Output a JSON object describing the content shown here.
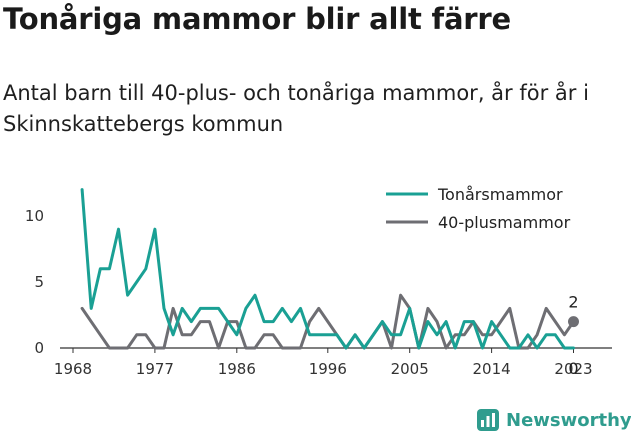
{
  "title": "Tonåriga mammor blir allt färre",
  "subtitle": "Antal barn till 40-plus- och tonåriga mammor, år för år i Skinnskattebergs kommun",
  "brand": {
    "name": "Newsworthy",
    "icon": "newsworthy-logo-icon",
    "color": "#2f9c8e"
  },
  "chart_data": {
    "type": "line",
    "x": [
      1969,
      1970,
      1971,
      1972,
      1973,
      1974,
      1975,
      1976,
      1977,
      1978,
      1979,
      1980,
      1981,
      1982,
      1983,
      1984,
      1985,
      1986,
      1987,
      1988,
      1989,
      1990,
      1991,
      1992,
      1993,
      1994,
      1995,
      1996,
      1997,
      1998,
      1999,
      2000,
      2001,
      2002,
      2003,
      2004,
      2005,
      2006,
      2007,
      2008,
      2009,
      2010,
      2011,
      2012,
      2013,
      2014,
      2015,
      2016,
      2017,
      2018,
      2019,
      2020,
      2021,
      2022,
      2023
    ],
    "series": [
      {
        "name": "Tonårsmammor",
        "color": "#1aa094",
        "values": [
          12,
          3,
          6,
          6,
          9,
          4,
          5,
          6,
          9,
          3,
          1,
          3,
          2,
          3,
          3,
          3,
          2,
          1,
          3,
          4,
          2,
          2,
          3,
          2,
          3,
          1,
          1,
          1,
          1,
          0,
          1,
          0,
          1,
          2,
          1,
          1,
          3,
          0,
          2,
          1,
          2,
          0,
          2,
          2,
          0,
          2,
          1,
          0,
          0,
          1,
          0,
          1,
          1,
          0,
          0
        ]
      },
      {
        "name": "40-plusmammor",
        "color": "#6e6e73",
        "values": [
          3,
          2,
          1,
          0,
          0,
          0,
          1,
          1,
          0,
          0,
          3,
          1,
          1,
          2,
          2,
          0,
          2,
          2,
          0,
          0,
          1,
          1,
          0,
          0,
          0,
          2,
          3,
          2,
          1,
          0,
          1,
          0,
          1,
          2,
          0,
          4,
          3,
          0,
          3,
          2,
          0,
          1,
          1,
          2,
          1,
          1,
          2,
          3,
          0,
          0,
          1,
          3,
          2,
          1,
          2
        ]
      }
    ],
    "xticks": [
      1968,
      1977,
      1986,
      1996,
      2005,
      2014,
      2023
    ],
    "yticks": [
      0,
      5,
      10
    ],
    "ylim": [
      0,
      12
    ],
    "xlim": [
      1968,
      2024
    ],
    "end_labels": [
      {
        "series": "40-plusmammor",
        "value": "2"
      },
      {
        "series": "Tonårsmammor",
        "value": "0"
      }
    ],
    "legend": "top-right",
    "grid": false
  }
}
